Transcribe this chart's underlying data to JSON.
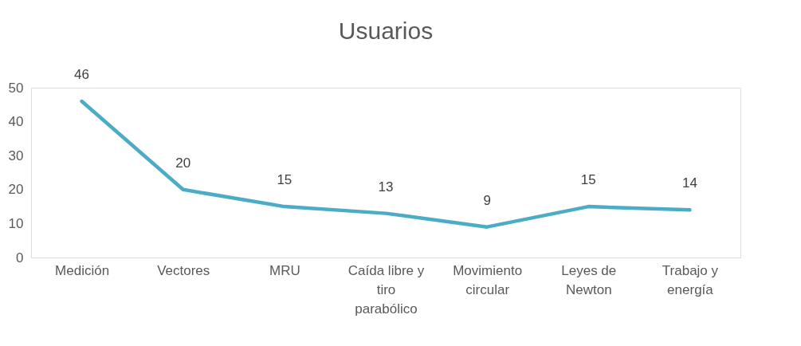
{
  "chart_data": {
    "type": "line",
    "title": "Usuarios",
    "categories": [
      "Medición",
      "Vectores",
      "MRU",
      "Caída libre y tiro parabólico",
      "Movimiento circular",
      "Leyes de Newton",
      "Trabajo y energía"
    ],
    "series": [
      {
        "color": "#4bacc6",
        "values": [
          46,
          20,
          15,
          13,
          9,
          15,
          14
        ]
      }
    ],
    "ylim": [
      0,
      50
    ],
    "yticks": [
      0,
      10,
      20,
      30,
      40,
      50
    ],
    "grid": false,
    "legend": false,
    "data_labels": true,
    "marker": "none",
    "line_style": "solid"
  }
}
